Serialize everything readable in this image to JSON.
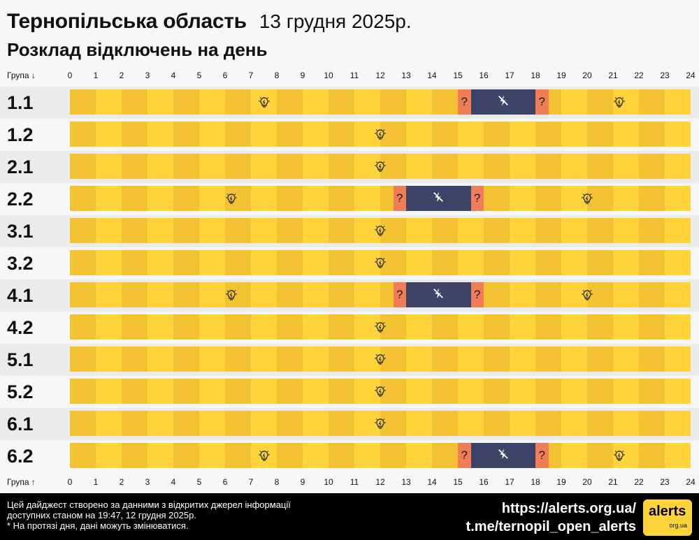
{
  "header": {
    "region": "Тернопільська область",
    "date": "13 грудня 2025р.",
    "subtitle": "Розклад відключень на день"
  },
  "axis": {
    "top_label": "Група ↓",
    "bottom_label": "Група ↑",
    "hours": [
      "0",
      "1",
      "2",
      "3",
      "4",
      "5",
      "6",
      "7",
      "8",
      "9",
      "10",
      "11",
      "12",
      "13",
      "14",
      "15",
      "16",
      "17",
      "18",
      "19",
      "20",
      "21",
      "22",
      "23",
      "24"
    ]
  },
  "legend_icons": {
    "power_on": "lightbulb-icon",
    "power_off": "power-off-icon",
    "uncertain": "?"
  },
  "colors": {
    "on_light": "#ffd43b",
    "on_dark": "#f2c232",
    "off": "#3f4368",
    "maybe": "#ef7d57"
  },
  "groups": [
    {
      "name": "1.1",
      "segments": [
        {
          "start": 15,
          "end": 15.5,
          "state": "maybe"
        },
        {
          "start": 15.5,
          "end": 18,
          "state": "off"
        },
        {
          "start": 18,
          "end": 18.5,
          "state": "maybe"
        }
      ],
      "bulbs": [
        7.5,
        21.25
      ]
    },
    {
      "name": "1.2",
      "segments": [],
      "bulbs": [
        12
      ]
    },
    {
      "name": "2.1",
      "segments": [],
      "bulbs": [
        12
      ]
    },
    {
      "name": "2.2",
      "segments": [
        {
          "start": 12.5,
          "end": 13,
          "state": "maybe"
        },
        {
          "start": 13,
          "end": 15.5,
          "state": "off"
        },
        {
          "start": 15.5,
          "end": 16,
          "state": "maybe"
        }
      ],
      "bulbs": [
        6.25,
        20
      ]
    },
    {
      "name": "3.1",
      "segments": [],
      "bulbs": [
        12
      ]
    },
    {
      "name": "3.2",
      "segments": [],
      "bulbs": [
        12
      ]
    },
    {
      "name": "4.1",
      "segments": [
        {
          "start": 12.5,
          "end": 13,
          "state": "maybe"
        },
        {
          "start": 13,
          "end": 15.5,
          "state": "off"
        },
        {
          "start": 15.5,
          "end": 16,
          "state": "maybe"
        }
      ],
      "bulbs": [
        6.25,
        20
      ]
    },
    {
      "name": "4.2",
      "segments": [],
      "bulbs": [
        12
      ]
    },
    {
      "name": "5.1",
      "segments": [],
      "bulbs": [
        12
      ]
    },
    {
      "name": "5.2",
      "segments": [],
      "bulbs": [
        12
      ]
    },
    {
      "name": "6.1",
      "segments": [],
      "bulbs": [
        12
      ]
    },
    {
      "name": "6.2",
      "segments": [
        {
          "start": 15,
          "end": 15.5,
          "state": "maybe"
        },
        {
          "start": 15.5,
          "end": 18,
          "state": "off"
        },
        {
          "start": 18,
          "end": 18.5,
          "state": "maybe"
        }
      ],
      "bulbs": [
        7.5,
        21.25
      ]
    }
  ],
  "footer": {
    "note_line1": "Цей дайджест створено за данними з відкритих джерел інформації",
    "note_line2": "доступних станом на 19:47, 12 грудня 2025р.",
    "note_line3": "* На протязі дня, дані можуть змінюватися.",
    "url": "https://alerts.org.ua/",
    "telegram": "t.me/ternopil_open_alerts",
    "logo_text": "alerts",
    "logo_sub": "org.ua"
  }
}
